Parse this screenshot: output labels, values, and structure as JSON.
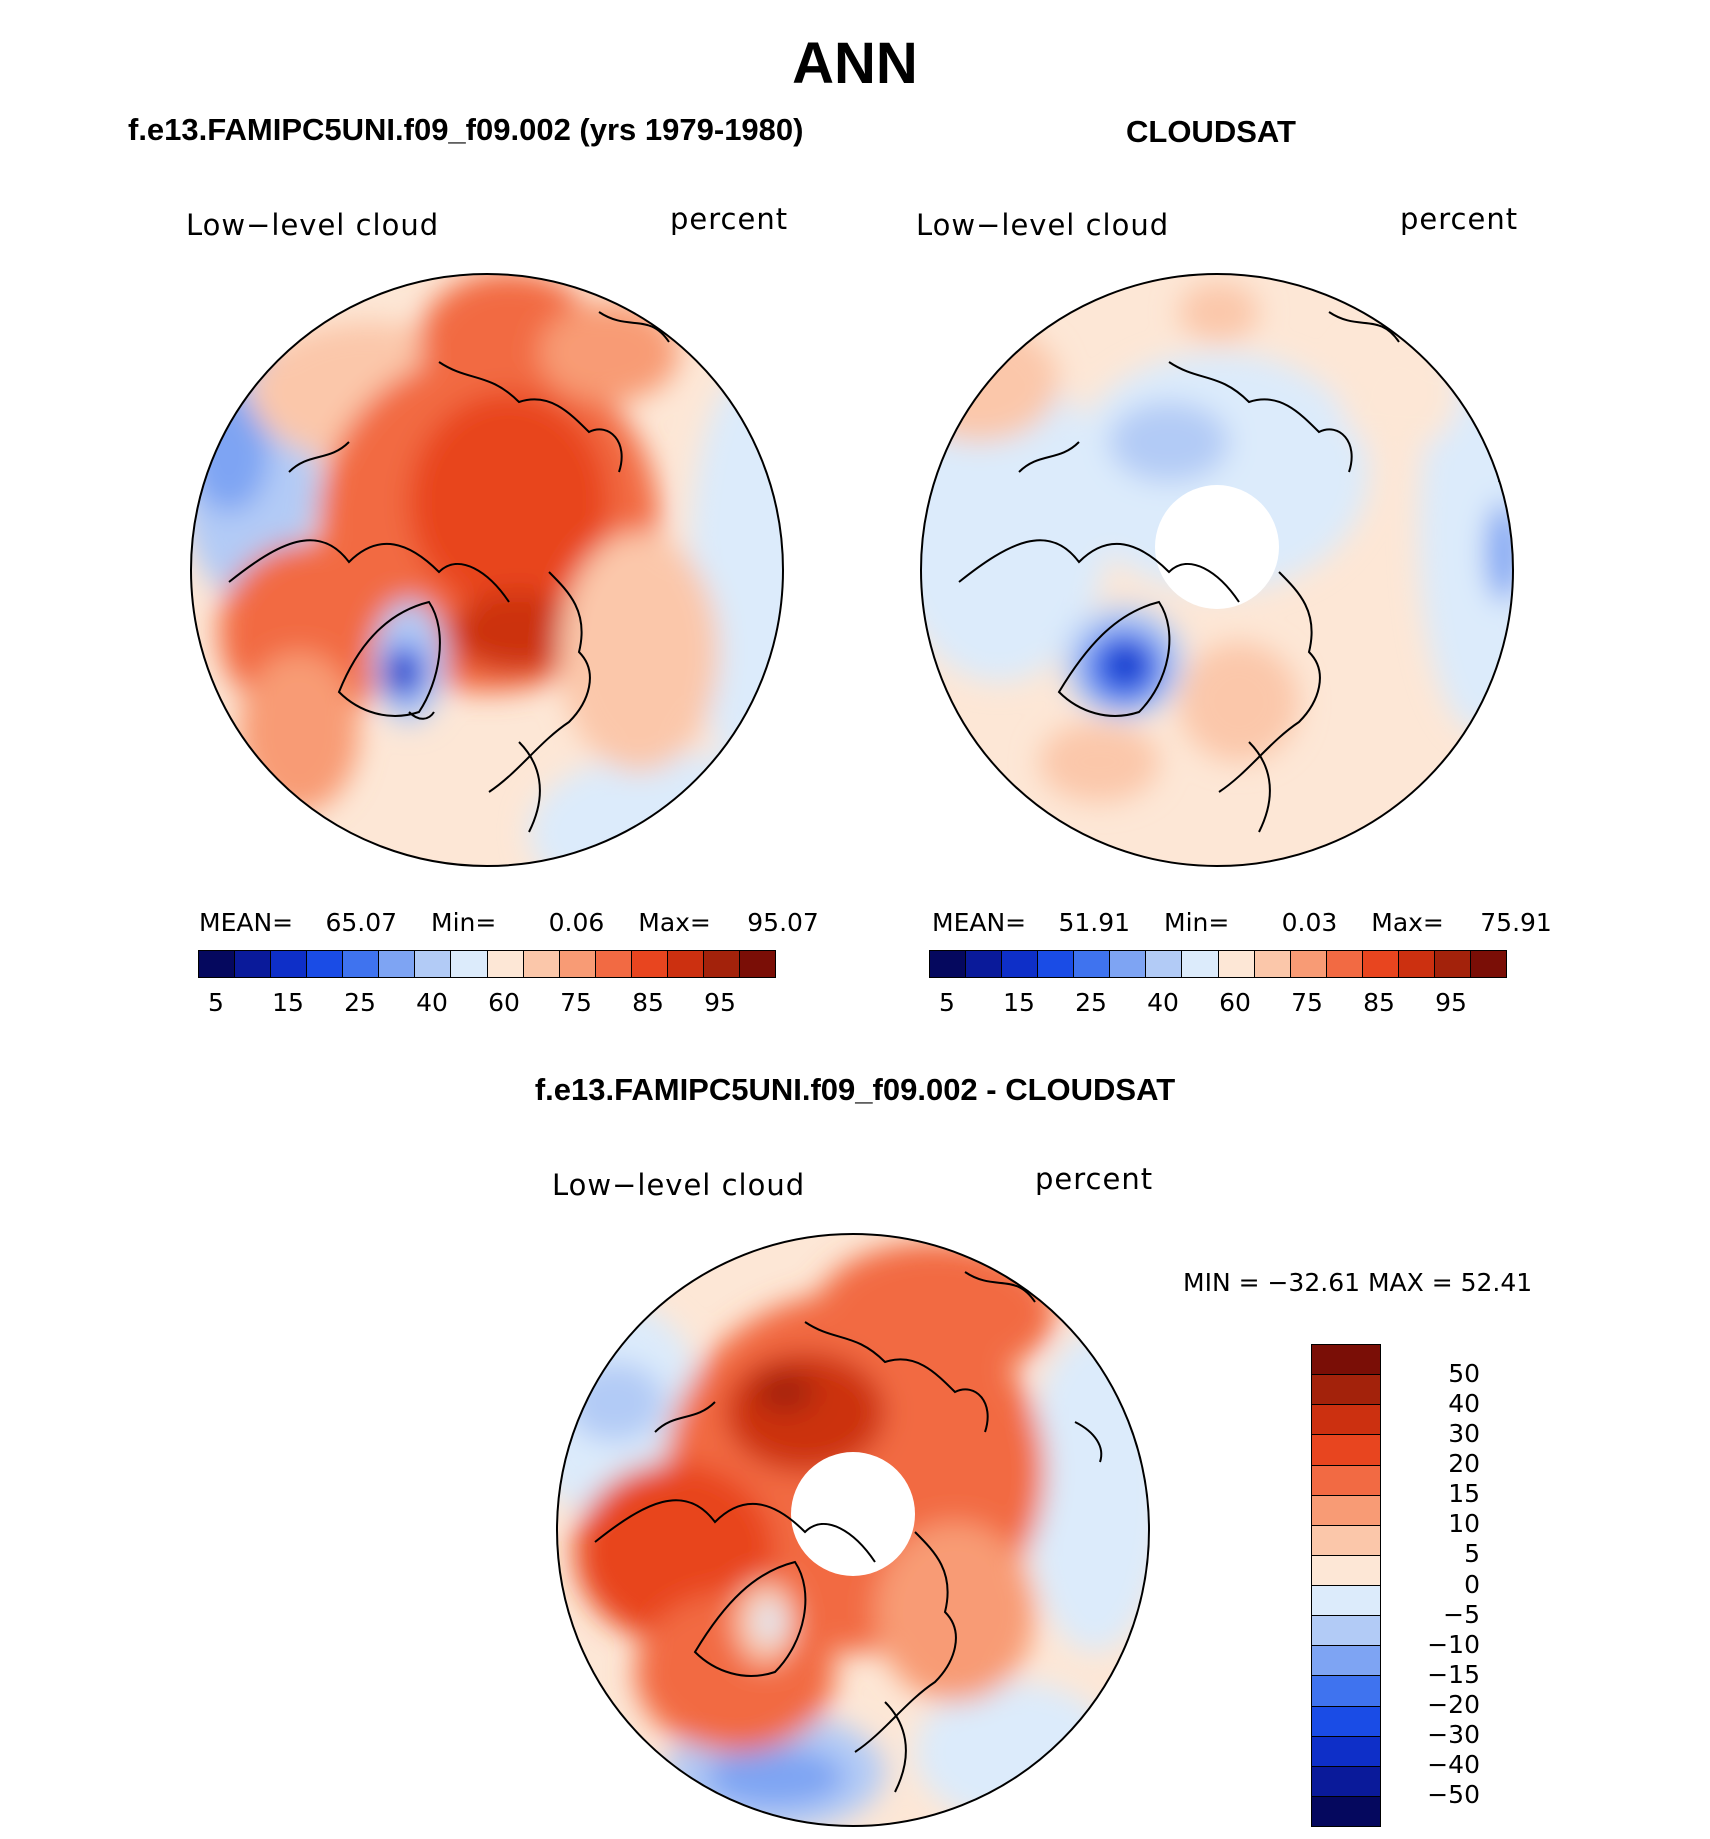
{
  "title": "ANN",
  "panels": [
    {
      "title": "f.e13.FAMIPC5UNI.f09_f09.002 (yrs 1979-1980)",
      "left_label": "Low−level cloud",
      "right_label": "percent",
      "mean_label": "MEAN=",
      "mean": "65.07",
      "min_label": "Min=",
      "min": "0.06",
      "max_label": "Max=",
      "max": "95.07"
    },
    {
      "title": "CLOUDSAT",
      "left_label": "Low−level cloud",
      "right_label": "percent",
      "mean_label": "MEAN=",
      "mean": "51.91",
      "min_label": "Min=",
      "min": "0.03",
      "max_label": "Max=",
      "max": "75.91"
    },
    {
      "title": "f.e13.FAMIPC5UNI.f09_f09.002 - CLOUDSAT",
      "left_label": "Low−level cloud",
      "right_label": "percent",
      "minmax": "MIN = −32.61  MAX =   52.41"
    }
  ],
  "colorbar_abs": {
    "colors": [
      "#05085e",
      "#0a1a9a",
      "#0e2fc8",
      "#1a4ce6",
      "#3f73ef",
      "#7ea4f3",
      "#b2cbf6",
      "#dcebfb",
      "#fde7d6",
      "#fbc7aa",
      "#f89b75",
      "#f26a43",
      "#e8451f",
      "#cc3010",
      "#a3220b",
      "#7a0e06"
    ],
    "ticks": [
      "5",
      "15",
      "25",
      "40",
      "60",
      "75",
      "85",
      "95"
    ]
  },
  "colorbar_diff": {
    "colors": [
      "#7a0e06",
      "#a3220b",
      "#cc3010",
      "#e8451f",
      "#f26a43",
      "#f89b75",
      "#fbc7aa",
      "#fde7d6",
      "#dcebfb",
      "#b2cbf6",
      "#7ea4f3",
      "#3f73ef",
      "#1a4ce6",
      "#0e2fc8",
      "#0a1a9a",
      "#05085e"
    ],
    "ticks": [
      "50",
      "40",
      "30",
      "20",
      "15",
      "10",
      "5",
      "0",
      "−5",
      "−10",
      "−15",
      "−20",
      "−30",
      "−40",
      "−50"
    ]
  }
}
